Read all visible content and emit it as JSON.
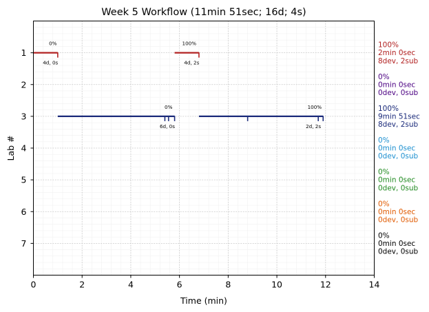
{
  "chart_data": {
    "type": "line",
    "title": "Week 5 Workflow (11min 51sec; 16d; 4s)",
    "xlabel": "Time (min)",
    "ylabel": "Lab #",
    "xlim": [
      0,
      14
    ],
    "ylim": [
      8,
      0
    ],
    "xticks": [
      "0",
      "2",
      "4",
      "6",
      "8",
      "10",
      "12",
      "14"
    ],
    "yticks": [
      "1",
      "2",
      "3",
      "4",
      "5",
      "6",
      "7"
    ],
    "grid": true,
    "minor_grid": true,
    "series": [
      {
        "lab": 1,
        "color": "#b22222",
        "segments": [
          [
            0.0,
            1.0
          ],
          [
            5.8,
            6.8
          ]
        ],
        "ticks": [
          1.0,
          6.8
        ],
        "annotations": [
          {
            "x": 0.8,
            "pos": "above",
            "text": "0%"
          },
          {
            "x": 0.7,
            "pos": "below",
            "text": "4d, 0s"
          },
          {
            "x": 6.4,
            "pos": "above",
            "text": "100%"
          },
          {
            "x": 6.5,
            "pos": "below",
            "text": "4d, 2s"
          }
        ]
      },
      {
        "lab": 2,
        "color": "#4b0082",
        "segments": [],
        "ticks": [],
        "annotations": []
      },
      {
        "lab": 3,
        "color": "#1a2a7a",
        "segments": [
          [
            1.0,
            5.8
          ],
          [
            6.8,
            11.9
          ]
        ],
        "ticks": [
          5.4,
          5.55,
          5.8,
          8.8,
          11.7,
          11.9
        ],
        "annotations": [
          {
            "x": 5.55,
            "pos": "above",
            "text": "0%"
          },
          {
            "x": 5.5,
            "pos": "below",
            "text": "6d, 0s"
          },
          {
            "x": 11.55,
            "pos": "above",
            "text": "100%"
          },
          {
            "x": 11.5,
            "pos": "below",
            "text": "2d, 2s"
          }
        ]
      },
      {
        "lab": 4,
        "color": "#1e90d0",
        "segments": [],
        "ticks": [],
        "annotations": []
      },
      {
        "lab": 5,
        "color": "#228b22",
        "segments": [],
        "ticks": [],
        "annotations": []
      },
      {
        "lab": 6,
        "color": "#e05a00",
        "segments": [],
        "ticks": [],
        "annotations": []
      },
      {
        "lab": 7,
        "color": "#000000",
        "segments": [],
        "ticks": [],
        "annotations": []
      }
    ],
    "side_labels": [
      {
        "lab": 1,
        "color": "#b22222",
        "lines": [
          "100%",
          "2min 0sec",
          "8dev, 2sub"
        ]
      },
      {
        "lab": 2,
        "color": "#4b0082",
        "lines": [
          "0%",
          "0min 0sec",
          "0dev, 0sub"
        ]
      },
      {
        "lab": 3,
        "color": "#1a2a7a",
        "lines": [
          "100%",
          "9min 51sec",
          "8dev, 2sub"
        ]
      },
      {
        "lab": 4,
        "color": "#1e90d0",
        "lines": [
          "0%",
          "0min 0sec",
          "0dev, 0sub"
        ]
      },
      {
        "lab": 5,
        "color": "#228b22",
        "lines": [
          "0%",
          "0min 0sec",
          "0dev, 0sub"
        ]
      },
      {
        "lab": 6,
        "color": "#e05a00",
        "lines": [
          "0%",
          "0min 0sec",
          "0dev, 0sub"
        ]
      },
      {
        "lab": 7,
        "color": "#000000",
        "lines": [
          "0%",
          "0min 0sec",
          "0dev, 0sub"
        ]
      }
    ]
  }
}
